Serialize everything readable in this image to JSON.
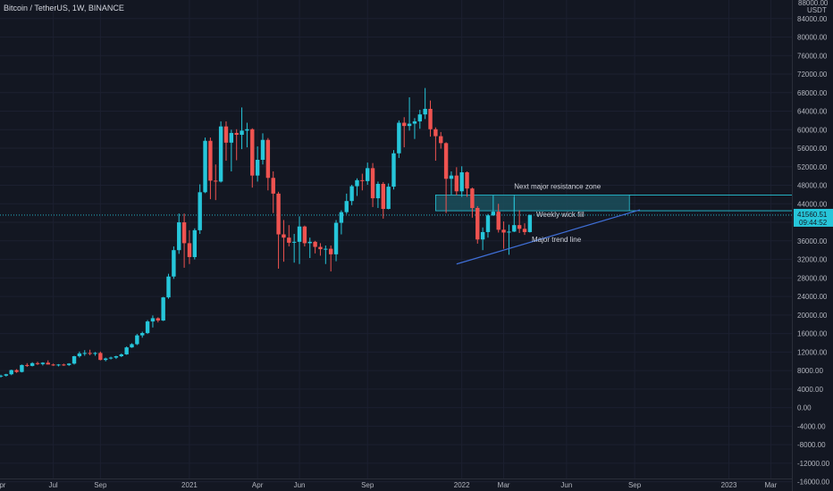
{
  "header": {
    "title": "Bitcoin / TetherUS, 1W, BINANCE"
  },
  "colors": {
    "up": "#26c6da",
    "down": "#ef5350",
    "background": "#131722",
    "price_line": "#26c6da",
    "trend_line": "#3f6fd8",
    "zone_fill": "#1b4f5c",
    "zone_border": "#26c6da"
  },
  "chart_data": {
    "type": "candlestick",
    "title": "Bitcoin / TetherUS, 1W, BINANCE",
    "y_unit_label": "USDT",
    "ylim": [
      -18000,
      88000
    ],
    "y_ticks": [
      84000,
      80000,
      76000,
      72000,
      68000,
      64000,
      60000,
      56000,
      52000,
      48000,
      44000,
      40000,
      36000,
      32000,
      28000,
      24000,
      20000,
      16000,
      12000,
      8000,
      4000,
      0,
      -4000,
      -8000,
      -12000,
      -16000
    ],
    "y_tick_labels": [
      "84000.00",
      "80000.00",
      "76000.00",
      "72000.00",
      "68000.00",
      "64000.00",
      "60000.00",
      "56000.00",
      "52000.00",
      "48000.00",
      "44000.00",
      "40000.00",
      "36000.00",
      "32000.00",
      "28000.00",
      "24000.00",
      "20000.00",
      "16000.00",
      "12000.00",
      "8000.00",
      "4000.00",
      "0.00",
      "-4000.00",
      "-8000.00",
      "-12000.00",
      "-16000.00"
    ],
    "x_tick_labels": [
      {
        "label": "Apr",
        "week": -3
      },
      {
        "label": "Jul",
        "week": 10
      },
      {
        "label": "Sep",
        "week": 19
      },
      {
        "label": "2021",
        "week": 36
      },
      {
        "label": "Apr",
        "week": 49
      },
      {
        "label": "Jun",
        "week": 57
      },
      {
        "label": "Sep",
        "week": 70
      },
      {
        "label": "2022",
        "week": 88
      },
      {
        "label": "Mar",
        "week": 96
      },
      {
        "label": "Jun",
        "week": 108
      },
      {
        "label": "Sep",
        "week": 121
      },
      {
        "label": "2023",
        "week": 139
      },
      {
        "label": "Mar",
        "week": 147
      }
    ],
    "current_price": 41560.51,
    "current_price_label": "41560.51",
    "countdown_label": "09:44:52",
    "candles": [
      [
        6800,
        7100,
        6500,
        6900
      ],
      [
        6900,
        7300,
        6700,
        7200
      ],
      [
        7200,
        8200,
        7000,
        8100
      ],
      [
        8100,
        8300,
        7500,
        7700
      ],
      [
        7700,
        9300,
        7600,
        9200
      ],
      [
        9200,
        9600,
        8800,
        9000
      ],
      [
        9000,
        9800,
        8900,
        9600
      ],
      [
        9600,
        9900,
        9200,
        9400
      ],
      [
        9400,
        9800,
        9100,
        9700
      ],
      [
        9700,
        10200,
        9500,
        9300
      ],
      [
        9300,
        9500,
        9000,
        9200
      ],
      [
        9200,
        9400,
        8900,
        9300
      ],
      [
        9300,
        9500,
        9000,
        9200
      ],
      [
        9200,
        9600,
        9000,
        9500
      ],
      [
        9500,
        11200,
        9300,
        11100
      ],
      [
        11100,
        12100,
        10800,
        11700
      ],
      [
        11700,
        12400,
        11200,
        11800
      ],
      [
        11800,
        12500,
        11300,
        11600
      ],
      [
        11600,
        12000,
        11200,
        11800
      ],
      [
        11800,
        12100,
        10200,
        10300
      ],
      [
        10300,
        10800,
        10000,
        10600
      ],
      [
        10600,
        11000,
        10400,
        10800
      ],
      [
        10800,
        11200,
        10500,
        11100
      ],
      [
        11100,
        11700,
        10900,
        11500
      ],
      [
        11500,
        13200,
        11400,
        13000
      ],
      [
        13000,
        13900,
        12900,
        13700
      ],
      [
        13700,
        15900,
        13500,
        15600
      ],
      [
        15600,
        16400,
        15100,
        16100
      ],
      [
        16100,
        18900,
        15900,
        18600
      ],
      [
        18600,
        19900,
        17300,
        19300
      ],
      [
        19300,
        19500,
        18400,
        18800
      ],
      [
        18800,
        23900,
        18700,
        23800
      ],
      [
        23800,
        28900,
        23500,
        28300
      ],
      [
        28300,
        34800,
        27800,
        34000
      ],
      [
        34000,
        41900,
        33200,
        40000
      ],
      [
        40000,
        41900,
        30200,
        35500
      ],
      [
        35500,
        38300,
        31000,
        32500
      ],
      [
        32500,
        38700,
        32000,
        38300
      ],
      [
        38300,
        48200,
        37500,
        46500
      ],
      [
        46500,
        58300,
        46300,
        57600
      ],
      [
        57600,
        58300,
        45000,
        49000
      ],
      [
        49000,
        52500,
        44800,
        48800
      ],
      [
        48800,
        61800,
        48600,
        60700
      ],
      [
        60700,
        61800,
        53300,
        57200
      ],
      [
        57200,
        60000,
        51000,
        59300
      ],
      [
        59300,
        60100,
        53400,
        58900
      ],
      [
        58900,
        64800,
        55800,
        59800
      ],
      [
        59800,
        61500,
        56200,
        60100
      ],
      [
        60100,
        60300,
        47500,
        50100
      ],
      [
        50100,
        56400,
        48800,
        53500
      ],
      [
        53500,
        59200,
        52500,
        57800
      ],
      [
        57800,
        58200,
        46900,
        49600
      ],
      [
        49600,
        51000,
        42000,
        46200
      ],
      [
        46200,
        46600,
        30000,
        37400
      ],
      [
        37400,
        40500,
        31500,
        36700
      ],
      [
        36700,
        39400,
        34800,
        35600
      ],
      [
        35600,
        37500,
        31300,
        35800
      ],
      [
        35800,
        41300,
        31000,
        39100
      ],
      [
        39100,
        39300,
        34800,
        35500
      ],
      [
        35500,
        36700,
        32300,
        35800
      ],
      [
        35800,
        36000,
        33300,
        34700
      ],
      [
        34700,
        35500,
        32800,
        34200
      ],
      [
        34200,
        35000,
        31000,
        34300
      ],
      [
        34300,
        35000,
        29400,
        33100
      ],
      [
        33100,
        40500,
        31600,
        39900
      ],
      [
        39900,
        42600,
        37400,
        42200
      ],
      [
        42200,
        46200,
        41800,
        44600
      ],
      [
        44600,
        48100,
        43700,
        47800
      ],
      [
        47800,
        49500,
        45700,
        49100
      ],
      [
        49100,
        50500,
        46900,
        48900
      ],
      [
        48900,
        52900,
        48100,
        51700
      ],
      [
        51700,
        52800,
        43300,
        45200
      ],
      [
        45200,
        48800,
        43100,
        48300
      ],
      [
        48300,
        48700,
        40800,
        42900
      ],
      [
        42900,
        48400,
        42800,
        47700
      ],
      [
        47700,
        55600,
        47100,
        54900
      ],
      [
        54900,
        62000,
        53900,
        61500
      ],
      [
        61500,
        62700,
        56200,
        60800
      ],
      [
        60800,
        67000,
        59800,
        61300
      ],
      [
        61300,
        62500,
        58000,
        61800
      ],
      [
        61800,
        64300,
        60200,
        63300
      ],
      [
        63300,
        69000,
        62300,
        64500
      ],
      [
        64500,
        66300,
        58500,
        60100
      ],
      [
        60100,
        60500,
        53300,
        58600
      ],
      [
        58600,
        59500,
        55900,
        57100
      ],
      [
        57100,
        57300,
        42000,
        49400
      ],
      [
        49400,
        51000,
        46000,
        50100
      ],
      [
        50100,
        51900,
        45800,
        46700
      ],
      [
        46700,
        52100,
        45500,
        50800
      ],
      [
        50800,
        51000,
        45500,
        47300
      ],
      [
        47300,
        47500,
        41000,
        43100
      ],
      [
        43100,
        43500,
        35400,
        36300
      ],
      [
        36300,
        38900,
        34000,
        37900
      ],
      [
        37900,
        41800,
        36700,
        41500
      ],
      [
        41500,
        45800,
        41400,
        42300
      ],
      [
        42300,
        44000,
        37800,
        38400
      ],
      [
        38400,
        40200,
        34300,
        37800
      ],
      [
        37800,
        39500,
        33000,
        38000
      ],
      [
        38000,
        45400,
        37900,
        39400
      ],
      [
        39400,
        42600,
        37700,
        38600
      ],
      [
        38600,
        39800,
        37300,
        37900
      ],
      [
        37900,
        41700,
        37800,
        41560.51
      ]
    ],
    "annotations": [
      {
        "text": "Next major resistance zone",
        "kind": "zone",
        "y_range": [
          42500,
          45900
        ]
      },
      {
        "text": "Weekly wick fill"
      },
      {
        "text": "Major trend line",
        "kind": "line",
        "from_value": 31000,
        "to_value": 42700
      }
    ]
  }
}
